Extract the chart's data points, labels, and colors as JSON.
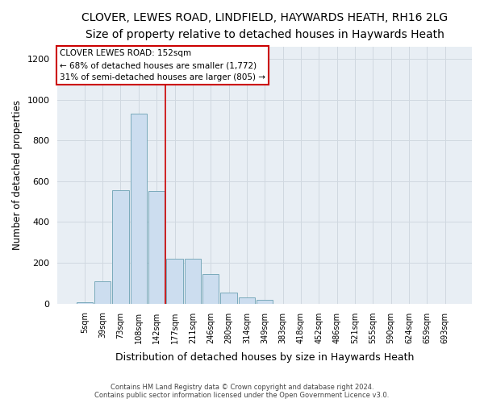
{
  "title": "CLOVER, LEWES ROAD, LINDFIELD, HAYWARDS HEATH, RH16 2LG",
  "subtitle": "Size of property relative to detached houses in Haywards Heath",
  "xlabel": "Distribution of detached houses by size in Haywards Heath",
  "ylabel": "Number of detached properties",
  "footer_line1": "Contains HM Land Registry data © Crown copyright and database right 2024.",
  "footer_line2": "Contains public sector information licensed under the Open Government Licence v3.0.",
  "categories": [
    "5sqm",
    "39sqm",
    "73sqm",
    "108sqm",
    "142sqm",
    "177sqm",
    "211sqm",
    "246sqm",
    "280sqm",
    "314sqm",
    "349sqm",
    "383sqm",
    "418sqm",
    "452sqm",
    "486sqm",
    "521sqm",
    "555sqm",
    "590sqm",
    "624sqm",
    "659sqm",
    "693sqm"
  ],
  "bar_values": [
    5,
    110,
    555,
    930,
    550,
    220,
    220,
    145,
    55,
    30,
    20,
    0,
    0,
    0,
    0,
    0,
    0,
    0,
    0,
    0,
    0
  ],
  "bar_color": "#ccddef",
  "bar_edge_color": "#7aaabb",
  "grid_color": "#d0d8e0",
  "vline_x": 4.5,
  "vline_color": "#cc0000",
  "annotation_title": "CLOVER LEWES ROAD: 152sqm",
  "annotation_line2": "← 68% of detached houses are smaller (1,772)",
  "annotation_line3": "31% of semi-detached houses are larger (805) →",
  "annotation_box_color": "#ffffff",
  "annotation_box_edge_color": "#cc0000",
  "ylim": [
    0,
    1260
  ],
  "yticks": [
    0,
    200,
    400,
    600,
    800,
    1000,
    1200
  ],
  "background_color": "#ffffff",
  "plot_background": "#e8eef4",
  "title_fontsize": 10,
  "subtitle_fontsize": 9,
  "xlabel_fontsize": 9,
  "ylabel_fontsize": 8.5
}
